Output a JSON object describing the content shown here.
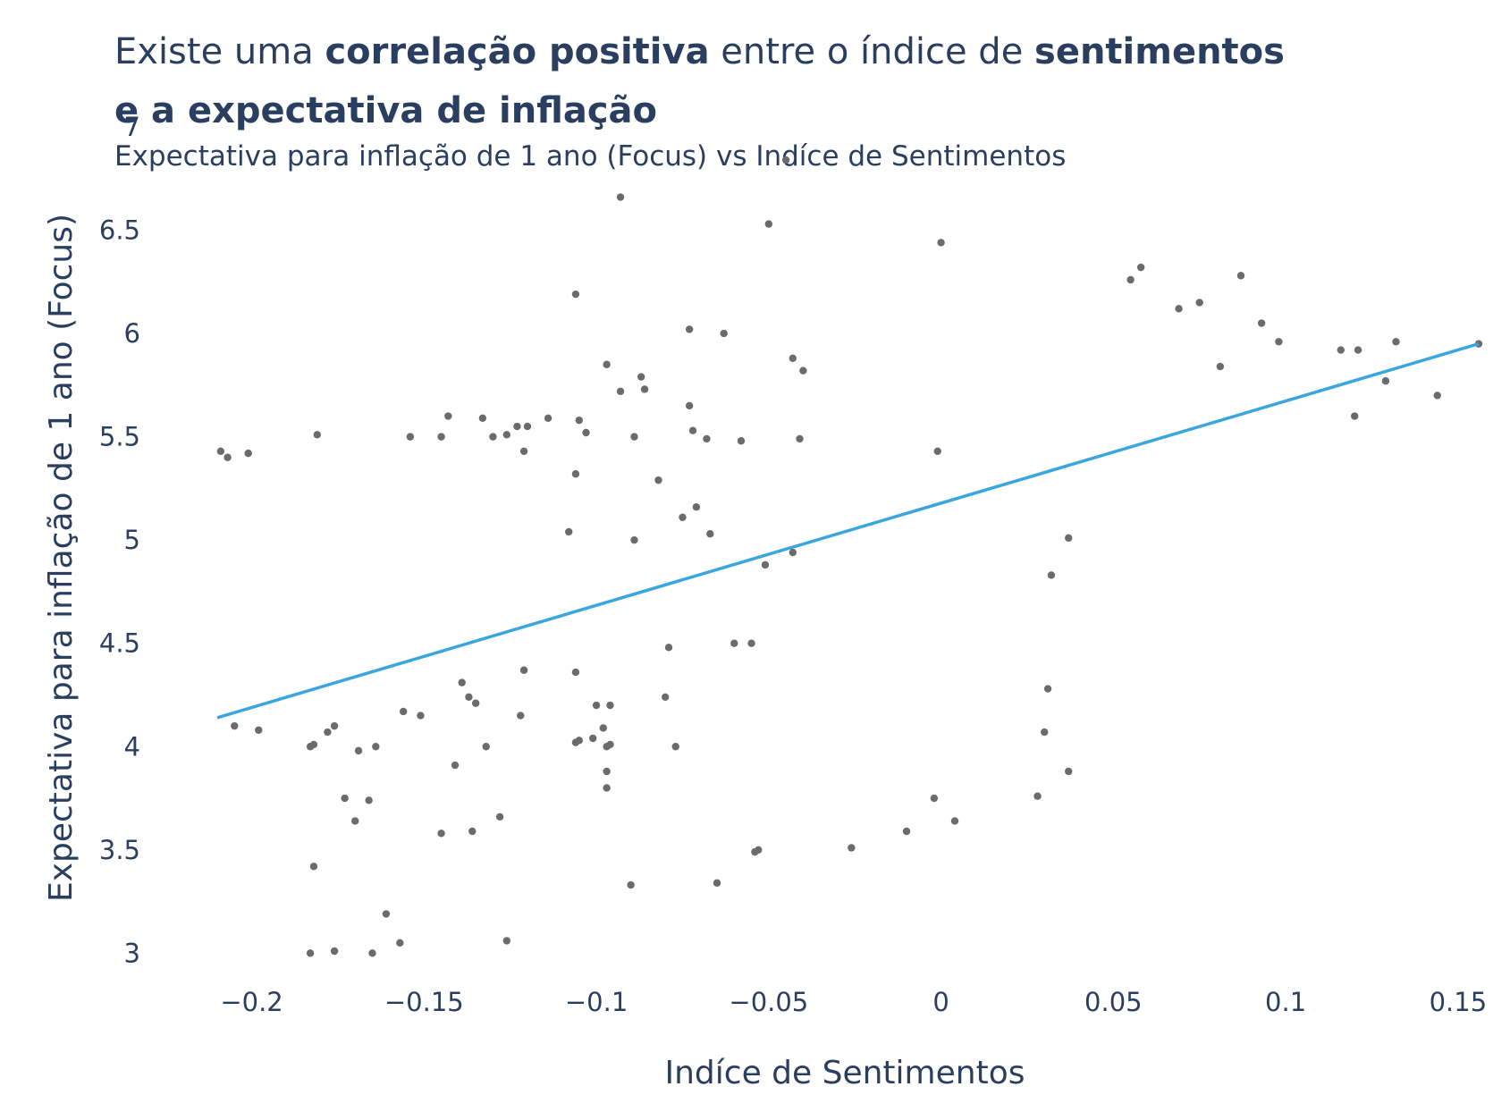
{
  "chart_data": {
    "type": "scatter",
    "title": {
      "lines": [
        [
          {
            "text": "Existe uma ",
            "bold": false
          },
          {
            "text": "correlação positiva",
            "bold": true
          },
          {
            "text": " entre o índice de ",
            "bold": false
          },
          {
            "text": "sentimentos",
            "bold": true
          }
        ],
        [
          {
            "text": "e a expectativa de inflação",
            "bold": true
          }
        ]
      ]
    },
    "subtitle": "Expectativa para inflação de 1 ano (Focus) vs Indíce de Sentimentos",
    "x_label": "Indíce de Sentimentos",
    "y_label": "Expectativa para inflação de 1 ano (Focus)",
    "xlim": [
      -0.21,
      0.156
    ],
    "ylim": [
      2.85,
      7.0
    ],
    "xticks": [
      {
        "value": -0.2,
        "label": "−0.2"
      },
      {
        "value": -0.15,
        "label": "−0.15"
      },
      {
        "value": -0.1,
        "label": "−0.1"
      },
      {
        "value": -0.05,
        "label": "−0.05"
      },
      0,
      0.05,
      0.1,
      0.15
    ],
    "yticks": [
      3,
      3.5,
      4,
      4.5,
      5,
      5.5,
      6,
      6.5,
      7
    ],
    "grid": false,
    "color": "#6b6b6b",
    "x": [
      -0.209,
      -0.207,
      -0.201,
      -0.181,
      -0.205,
      -0.198,
      -0.183,
      -0.182,
      -0.178,
      -0.176,
      -0.169,
      -0.164,
      -0.173,
      -0.166,
      -0.17,
      -0.182,
      -0.183,
      -0.176,
      -0.165,
      -0.161,
      -0.157,
      -0.156,
      -0.151,
      -0.154,
      -0.145,
      -0.143,
      -0.139,
      -0.137,
      -0.135,
      -0.141,
      -0.132,
      -0.145,
      -0.136,
      -0.128,
      -0.126,
      -0.133,
      -0.13,
      -0.126,
      -0.123,
      -0.121,
      -0.12,
      -0.114,
      -0.121,
      -0.122,
      -0.106,
      -0.106,
      -0.108,
      -0.105,
      -0.103,
      -0.106,
      -0.1,
      -0.096,
      -0.098,
      -0.106,
      -0.105,
      -0.101,
      -0.097,
      -0.096,
      -0.097,
      -0.097,
      -0.097,
      -0.093,
      -0.093,
      -0.087,
      -0.086,
      -0.089,
      -0.089,
      -0.082,
      -0.079,
      -0.08,
      -0.077,
      -0.09,
      -0.073,
      -0.073,
      -0.072,
      -0.068,
      -0.071,
      -0.075,
      -0.067,
      -0.063,
      -0.058,
      -0.06,
      -0.055,
      -0.065,
      -0.054,
      -0.053,
      -0.051,
      -0.05,
      -0.045,
      -0.043,
      -0.043,
      -0.04,
      -0.041,
      -0.026,
      -0.01,
      -0.002,
      -0.001,
      0.0,
      0.004,
      0.028,
      0.03,
      0.031,
      0.032,
      0.037,
      0.037,
      0.055,
      0.058,
      0.069,
      0.075,
      0.087,
      0.081,
      0.093,
      0.098,
      0.116,
      0.121,
      0.12,
      0.132,
      0.129,
      0.144,
      0.156
    ],
    "values": [
      5.43,
      5.4,
      5.42,
      5.51,
      4.1,
      4.08,
      4.0,
      4.01,
      4.07,
      4.1,
      3.98,
      4.0,
      3.75,
      3.74,
      3.64,
      3.42,
      3.0,
      3.01,
      3.0,
      3.19,
      3.05,
      4.17,
      4.15,
      5.5,
      5.5,
      5.6,
      4.31,
      4.24,
      4.21,
      3.91,
      4.0,
      3.58,
      3.59,
      3.66,
      3.06,
      5.59,
      5.5,
      5.51,
      5.55,
      5.43,
      5.55,
      5.59,
      4.37,
      4.15,
      6.19,
      5.32,
      5.04,
      5.58,
      5.52,
      4.36,
      4.2,
      4.2,
      4.09,
      4.02,
      4.03,
      4.04,
      4.0,
      4.01,
      3.88,
      3.8,
      5.85,
      5.72,
      6.66,
      5.79,
      5.73,
      5.5,
      5.0,
      5.29,
      4.48,
      4.24,
      4.0,
      3.33,
      6.02,
      5.65,
      5.53,
      5.49,
      5.16,
      5.11,
      5.03,
      6.0,
      5.48,
      4.5,
      4.5,
      3.34,
      3.49,
      3.5,
      4.88,
      6.53,
      6.84,
      4.94,
      5.88,
      5.82,
      5.49,
      3.51,
      3.59,
      3.75,
      5.43,
      6.44,
      3.64,
      3.76,
      4.07,
      4.28,
      4.83,
      5.01,
      3.88,
      6.26,
      6.32,
      6.12,
      6.15,
      6.28,
      5.84,
      6.05,
      5.96,
      5.92,
      5.92,
      5.6,
      5.96,
      5.77,
      5.7,
      5.95
    ],
    "trendline": {
      "x": [
        -0.21,
        0.156
      ],
      "values": [
        4.14,
        5.95
      ],
      "color": "#3aa6dd"
    }
  }
}
